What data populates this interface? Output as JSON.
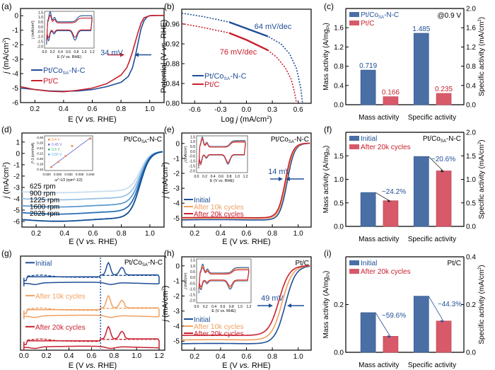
{
  "colors": {
    "blue": "#1f4e96",
    "red": "#c8202e",
    "orange": "#f0a060",
    "bar_blue": "#4a6fa5",
    "bar_red": "#d85a6a",
    "axis": "#000000"
  },
  "chart_data": [
    {
      "panel": "(a)",
      "type": "line",
      "xlabel": "E (V vs. RHE)",
      "ylabel": "j (mA/cm²)",
      "xlim": [
        0.1,
        1.1
      ],
      "ylim": [
        -6,
        0.5
      ],
      "xticks": [
        0.2,
        0.4,
        0.6,
        0.8,
        1.0
      ],
      "yticks": [
        0,
        -1,
        -2,
        -3,
        -4,
        -5,
        -6
      ],
      "annotation": "34 mV",
      "series": [
        {
          "name": "Pt/CoSA-N-C",
          "color": "blue",
          "x": [
            0.1,
            0.2,
            0.3,
            0.4,
            0.5,
            0.6,
            0.7,
            0.8,
            0.85,
            0.88,
            0.9,
            0.92,
            0.94,
            0.96,
            0.98,
            1.0,
            1.05,
            1.1
          ],
          "y": [
            -5.0,
            -5.1,
            -5.2,
            -5.22,
            -5.2,
            -5.1,
            -4.9,
            -4.6,
            -4.2,
            -3.6,
            -2.8,
            -1.8,
            -0.9,
            -0.35,
            -0.1,
            0.0,
            0.02,
            0.02
          ]
        },
        {
          "name": "Pt/C",
          "color": "red",
          "x": [
            0.1,
            0.2,
            0.3,
            0.4,
            0.5,
            0.6,
            0.7,
            0.8,
            0.84,
            0.86,
            0.88,
            0.9,
            0.92,
            0.94,
            0.96,
            1.0,
            1.05,
            1.1
          ],
          "y": [
            -4.9,
            -5.1,
            -5.22,
            -5.25,
            -5.15,
            -5.0,
            -4.7,
            -4.1,
            -3.6,
            -3.1,
            -2.5,
            -1.8,
            -1.1,
            -0.5,
            -0.15,
            0.0,
            0.02,
            0.02
          ]
        }
      ],
      "inset": {
        "xlabel": "E (V vs. RHE)",
        "ylabel": "j (mA/cm²)",
        "xlim": [
          0.0,
          1.25
        ],
        "ylim": [
          -2.2,
          1.6
        ],
        "xticks": [
          0.0,
          0.2,
          0.4,
          0.6,
          0.8,
          1.0,
          1.2
        ],
        "yticks": [
          1.5,
          1.0,
          0.5,
          0.0,
          -0.5,
          -1.0,
          -1.5,
          -2.0
        ],
        "series": [
          "blue",
          "red"
        ]
      }
    },
    {
      "panel": "(b)",
      "type": "line",
      "xlabel": "Log j (mA/cm²)",
      "ylabel": "Potential (V vs. RHE)",
      "xlim": [
        -0.75,
        0.75
      ],
      "ylim": [
        0.8,
        0.99
      ],
      "xticks": [
        -0.6,
        -0.3,
        0.0,
        0.3,
        0.6
      ],
      "yticks": [
        0.96,
        0.92,
        0.88,
        0.84,
        0.8
      ],
      "annotations": [
        {
          "text": "64 mV/dec",
          "color": "blue"
        },
        {
          "text": "76 mV/dec",
          "color": "red"
        }
      ],
      "series": [
        {
          "name": "Pt/CoSA-N-C",
          "color": "blue",
          "x": [
            -0.75,
            -0.5,
            -0.2,
            0.0,
            0.25,
            0.4,
            0.5,
            0.58,
            0.63,
            0.65
          ],
          "y": [
            0.982,
            0.975,
            0.964,
            0.951,
            0.935,
            0.92,
            0.9,
            0.87,
            0.83,
            0.8
          ]
        },
        {
          "name": "Pt/C",
          "color": "red",
          "x": [
            -0.75,
            -0.5,
            -0.2,
            0.0,
            0.25,
            0.35,
            0.45,
            0.52,
            0.56,
            0.58
          ],
          "y": [
            0.961,
            0.953,
            0.942,
            0.928,
            0.907,
            0.893,
            0.872,
            0.848,
            0.82,
            0.8
          ]
        }
      ]
    },
    {
      "panel": "(c)",
      "type": "bar",
      "categories": [
        "Mass activity",
        "Specific activity"
      ],
      "ylabel_left": "Mass activity (A/mgPt)",
      "ylabel_right": "Specific activity (mA/cm²)",
      "ylim_left": [
        0,
        2.0
      ],
      "ylim_right": [
        0,
        2.0
      ],
      "yticks_left": [
        0.0,
        0.4,
        0.8,
        1.2,
        1.6
      ],
      "yticks_right": [
        0.0,
        0.4,
        0.8,
        1.2,
        1.6,
        2.0
      ],
      "annotation": "@0.9 V",
      "series": [
        {
          "name": "Pt/CoSA-N-C",
          "color": "bar_blue",
          "values": [
            0.719,
            1.485
          ],
          "labels": [
            "0.719",
            "1.485"
          ]
        },
        {
          "name": "Pt/C",
          "color": "bar_red",
          "values": [
            0.166,
            0.235
          ],
          "labels": [
            "0.166",
            "0.235"
          ]
        }
      ]
    },
    {
      "panel": "(d)",
      "type": "line",
      "xlabel": "E (V vs. RHE)",
      "ylabel": "j (mA/cm²)",
      "xlim": [
        0.1,
        1.1
      ],
      "ylim": [
        -6.5,
        1.8
      ],
      "xticks": [
        0.2,
        0.4,
        0.6,
        0.8,
        1.0
      ],
      "yticks": [
        1,
        0,
        -1,
        -2,
        -3,
        -4,
        -5,
        -6
      ],
      "title": "Pt/CoSA-N-C",
      "series": [
        {
          "name": "625 rpm",
          "limit": -3.3,
          "color": "#c9ddef"
        },
        {
          "name": "900 rpm",
          "limit": -3.9,
          "color": "#9cc2e3"
        },
        {
          "name": "1225 rpm",
          "limit": -4.5,
          "color": "#5f9cd0"
        },
        {
          "name": "1600 rpm",
          "limit": -5.1,
          "color": "#2a70b5"
        },
        {
          "name": "2025 rpm",
          "limit": -5.7,
          "color": "#0f4d94"
        }
      ],
      "inset": {
        "xlabel": "ω^-1/2 (rpm^-1/2)",
        "ylabel": "j^-1 (cm²/mA)",
        "xlim": [
          0.019,
          0.041
        ],
        "ylim": [
          0.155,
          0.285
        ],
        "xticks": [
          0.02,
          0.025,
          0.03,
          0.035,
          0.04
        ],
        "yticks": [
          0.16,
          0.18,
          0.2,
          0.22,
          0.24,
          0.26,
          0.28
        ],
        "legend": [
          {
            "label": "0.4 V",
            "color": "#f08a4b"
          },
          {
            "label": "0.45 V",
            "color": "#6c6ccf"
          },
          {
            "label": "0.5 V",
            "color": "#3bb07a"
          },
          {
            "label": "0.55 V",
            "color": "#5aa8e0"
          }
        ],
        "points_x": [
          0.0222,
          0.0253,
          0.0286,
          0.0316,
          0.04
        ],
        "points_y": [
          0.168,
          0.187,
          0.209,
          0.247,
          0.274
        ]
      }
    },
    {
      "panel": "(e)",
      "type": "line",
      "xlabel": "E (V vs. RHE)",
      "ylabel": "j (mA/cm²)",
      "xlim": [
        0.1,
        1.1
      ],
      "ylim": [
        -5.6,
        0.7
      ],
      "xticks": [
        0.2,
        0.4,
        0.6,
        0.8,
        1.0
      ],
      "yticks": [
        0,
        -1,
        -2,
        -3,
        -4,
        -5
      ],
      "title": "Pt/CoSA-N-C",
      "annotation": "14 mV",
      "series": [
        {
          "name": "Initial",
          "color": "blue",
          "shift": 0.0,
          "floor": -5.15
        },
        {
          "name": "After 10k cycles",
          "color": "orange",
          "shift": -0.007,
          "floor": -5.05
        },
        {
          "name": "After 20k cycles",
          "color": "red",
          "shift": -0.014,
          "floor": -5.0
        }
      ]
    },
    {
      "panel": "(f)",
      "type": "bar",
      "categories": [
        "Mass activity",
        "Specific activity"
      ],
      "ylabel_left": "Mass activity (A/mgPt)",
      "ylabel_right": "Specific activity (mA/cm²)",
      "ylim_left": [
        0,
        2.0
      ],
      "ylim_right": [
        0,
        2.0
      ],
      "yticks_left": [
        0.0,
        0.5,
        1.0,
        1.5
      ],
      "yticks_right": [
        0.0,
        0.5,
        1.0,
        1.5,
        2.0
      ],
      "title": "Pt/CoSA-N-C",
      "series": [
        {
          "name": "Initial",
          "color": "bar_blue",
          "values": [
            0.719,
            1.485
          ]
        },
        {
          "name": "After 20k cycles",
          "color": "bar_red",
          "values": [
            0.545,
            1.179
          ]
        }
      ],
      "annotations": [
        "~24.2%",
        "~20.6%"
      ]
    },
    {
      "panel": "(g)",
      "type": "line",
      "xlabel": "E (V vs. RHE)",
      "xlim": [
        -0.03,
        1.25
      ],
      "xticks": [
        0.0,
        0.2,
        0.4,
        0.6,
        0.8,
        1.0,
        1.2
      ],
      "title": "Pt/CoSA-N-C",
      "vline_x": 0.68,
      "series": [
        {
          "name": "Initial",
          "color": "blue"
        },
        {
          "name": "After 10k cycles",
          "color": "orange"
        },
        {
          "name": "After 20k cycles",
          "color": "red"
        }
      ]
    },
    {
      "panel": "(h)",
      "type": "line",
      "xlabel": "E (V vs. RHE)",
      "ylabel": "j (mA/cm²)",
      "xlim": [
        0.1,
        1.1
      ],
      "ylim": [
        -5.6,
        0.6
      ],
      "xticks": [
        0.2,
        0.4,
        0.6,
        0.8,
        1.0
      ],
      "yticks": [
        0,
        -1,
        -2,
        -3,
        -4,
        -5
      ],
      "title": "Pt/C",
      "annotation": "49 mV",
      "series": [
        {
          "name": "Initial",
          "color": "blue",
          "shift": 0.0,
          "floor": -5.2
        },
        {
          "name": "After 10k cycles",
          "color": "orange",
          "shift": -0.025,
          "floor": -4.95
        },
        {
          "name": "After 20k cycles",
          "color": "red",
          "shift": -0.049,
          "floor": -4.65
        }
      ]
    },
    {
      "panel": "(i)",
      "type": "bar",
      "categories": [
        "Mass activity",
        "Specific activity"
      ],
      "ylabel_left": "Mass activity (A/mgPt)",
      "ylabel_right": "Specific activity (mA/cm²)",
      "ylim_left": [
        0,
        0.4
      ],
      "ylim_right": [
        0,
        0.4
      ],
      "yticks_left": [
        0.0,
        0.2
      ],
      "yticks_right": [
        0.0,
        0.2,
        0.4
      ],
      "title": "Pt/C",
      "series": [
        {
          "name": "Initial",
          "color": "bar_blue",
          "values": [
            0.166,
            0.235
          ]
        },
        {
          "name": "After 20k cycles",
          "color": "bar_red",
          "values": [
            0.067,
            0.131
          ]
        }
      ],
      "annotations": [
        "~59.6%",
        "~44.3%"
      ]
    }
  ]
}
